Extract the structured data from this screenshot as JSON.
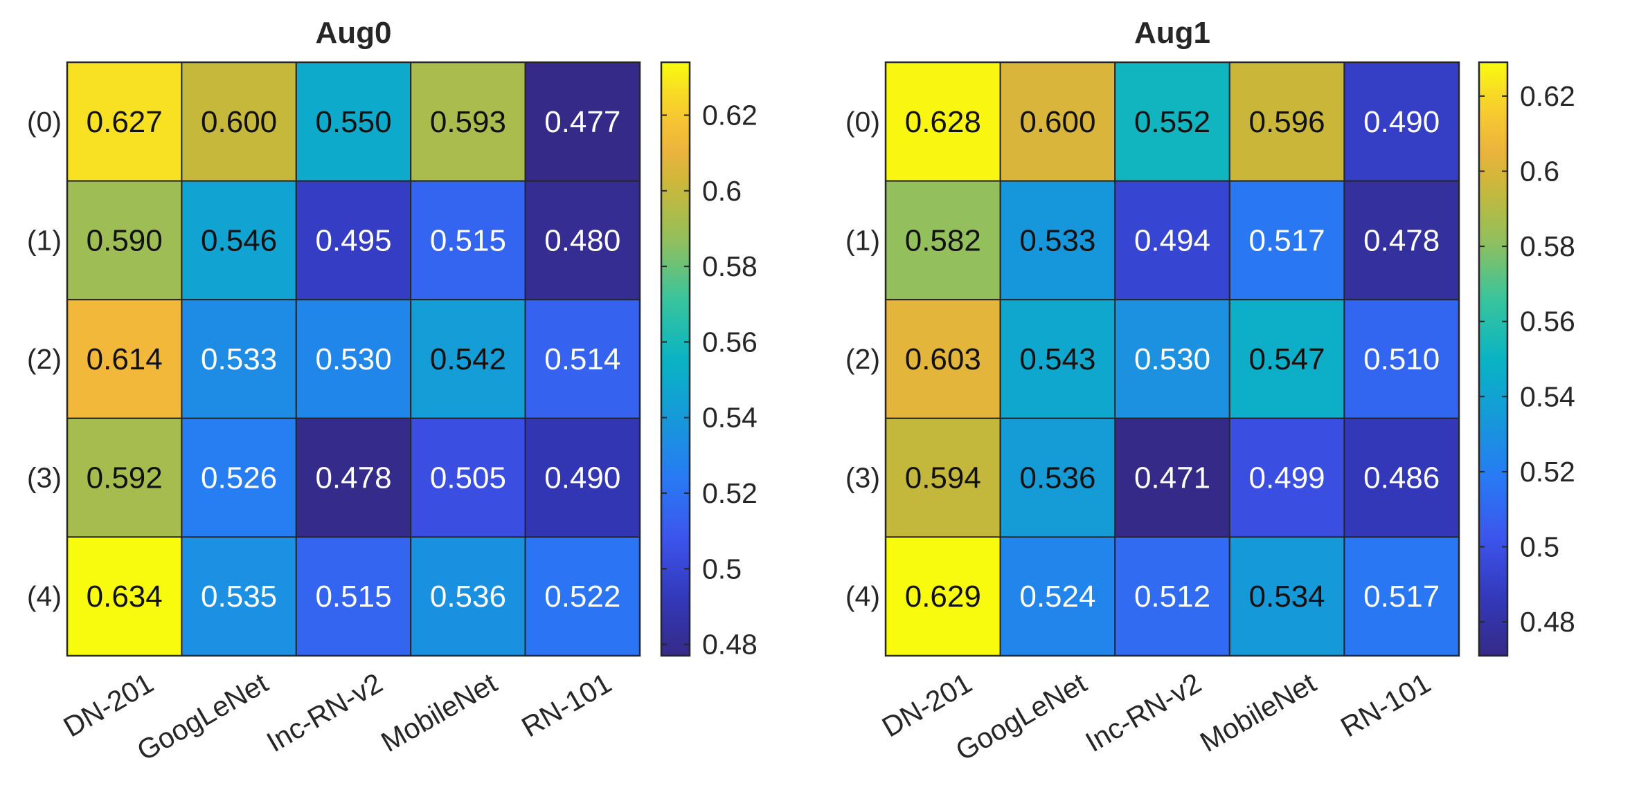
{
  "chart_data": [
    {
      "type": "heatmap",
      "title": "Aug0",
      "columns": [
        "DN-201",
        "GoogLeNet",
        "Inc-RN-v2",
        "MobileNet",
        "RN-101"
      ],
      "rows": [
        "(0)",
        "(1)",
        "(2)",
        "(3)",
        "(4)"
      ],
      "values": [
        [
          0.627,
          0.6,
          0.55,
          0.593,
          0.477
        ],
        [
          0.59,
          0.546,
          0.495,
          0.515,
          0.48
        ],
        [
          0.614,
          0.533,
          0.53,
          0.542,
          0.514
        ],
        [
          0.592,
          0.526,
          0.478,
          0.505,
          0.49
        ],
        [
          0.634,
          0.535,
          0.515,
          0.536,
          0.522
        ]
      ],
      "cell_labels": [
        [
          "0.627",
          "0.600",
          "0.550",
          "0.593",
          "0.477"
        ],
        [
          "0.590",
          "0.546",
          "0.495",
          "0.515",
          "0.480"
        ],
        [
          "0.614",
          "0.533",
          "0.530",
          "0.542",
          "0.514"
        ],
        [
          "0.592",
          "0.526",
          "0.478",
          "0.505",
          "0.490"
        ],
        [
          "0.634",
          "0.535",
          "0.515",
          "0.536",
          "0.522"
        ]
      ],
      "color_range": [
        0.477,
        0.634
      ],
      "colorbar_ticks": [
        "0.48",
        "0.5",
        "0.52",
        "0.54",
        "0.56",
        "0.58",
        "0.6",
        "0.62"
      ],
      "colormap": "parula"
    },
    {
      "type": "heatmap",
      "title": "Aug1",
      "columns": [
        "DN-201",
        "GoogLeNet",
        "Inc-RN-v2",
        "MobileNet",
        "RN-101"
      ],
      "rows": [
        "(0)",
        "(1)",
        "(2)",
        "(3)",
        "(4)"
      ],
      "values": [
        [
          0.628,
          0.6,
          0.552,
          0.596,
          0.49
        ],
        [
          0.582,
          0.533,
          0.494,
          0.517,
          0.478
        ],
        [
          0.603,
          0.543,
          0.53,
          0.547,
          0.51
        ],
        [
          0.594,
          0.536,
          0.471,
          0.499,
          0.486
        ],
        [
          0.629,
          0.524,
          0.512,
          0.534,
          0.517
        ]
      ],
      "cell_labels": [
        [
          "0.628",
          "0.600",
          "0.552",
          "0.596",
          "0.490"
        ],
        [
          "0.582",
          "0.533",
          "0.494",
          "0.517",
          "0.478"
        ],
        [
          "0.603",
          "0.543",
          "0.530",
          "0.547",
          "0.510"
        ],
        [
          "0.594",
          "0.536",
          "0.471",
          "0.499",
          "0.486"
        ],
        [
          "0.629",
          "0.524",
          "0.512",
          "0.534",
          "0.517"
        ]
      ],
      "color_range": [
        0.471,
        0.629
      ],
      "colorbar_ticks": [
        "0.48",
        "0.5",
        "0.52",
        "0.54",
        "0.56",
        "0.58",
        "0.6",
        "0.62"
      ],
      "colormap": "parula"
    }
  ]
}
